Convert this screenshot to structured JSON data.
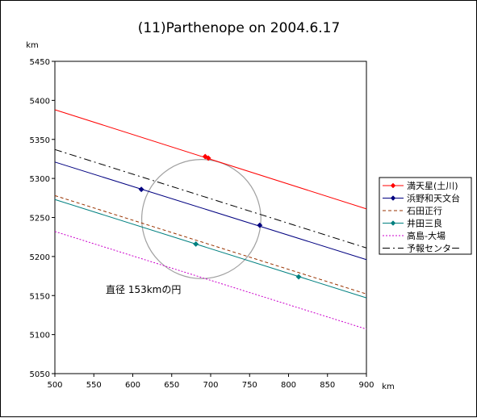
{
  "chart_data": {
    "type": "line",
    "title": "(11)Parthenope on 2004.6.17",
    "xlabel": "km",
    "ylabel": "km",
    "xlim": [
      500,
      900
    ],
    "ylim": [
      5050,
      5450
    ],
    "xticks": [
      500,
      550,
      600,
      650,
      700,
      750,
      800,
      850,
      900
    ],
    "yticks": [
      5050,
      5100,
      5150,
      5200,
      5250,
      5300,
      5350,
      5400,
      5450
    ],
    "grid": false,
    "legend_position": "right",
    "annotation": "直径 153kmの円",
    "circle": {
      "center": [
        688,
        5248
      ],
      "diameter_km": 153,
      "color": "#a0a0a0"
    },
    "series": [
      {
        "name": "満天星(土川)",
        "color": "#ff0000",
        "dash": "solid",
        "marker": "diamond",
        "line": [
          [
            500,
            5388
          ],
          [
            900,
            5261
          ]
        ],
        "points": [
          [
            693,
            5328
          ],
          [
            697,
            5326
          ]
        ]
      },
      {
        "name": "浜野和天文台",
        "color": "#000080",
        "dash": "solid",
        "marker": "diamond",
        "line": [
          [
            500,
            5321
          ],
          [
            900,
            5196
          ]
        ],
        "points": [
          [
            611,
            5286
          ],
          [
            763,
            5240
          ]
        ]
      },
      {
        "name": "石田正行",
        "color": "#993300",
        "dash": "dashed",
        "marker": "none",
        "line": [
          [
            500,
            5278
          ],
          [
            900,
            5152
          ]
        ],
        "points": []
      },
      {
        "name": "井田三良",
        "color": "#008080",
        "dash": "solid",
        "marker": "diamond",
        "line": [
          [
            500,
            5273
          ],
          [
            900,
            5147
          ]
        ],
        "points": [
          [
            681,
            5216
          ],
          [
            813,
            5174
          ]
        ]
      },
      {
        "name": "高島-大場",
        "color": "#cc00cc",
        "dash": "dotted",
        "marker": "none",
        "line": [
          [
            500,
            5232
          ],
          [
            900,
            5107
          ]
        ],
        "points": []
      },
      {
        "name": "予報センター",
        "color": "#000000",
        "dash": "dashdot",
        "marker": "none",
        "line": [
          [
            500,
            5337
          ],
          [
            900,
            5211
          ]
        ],
        "points": []
      }
    ]
  }
}
